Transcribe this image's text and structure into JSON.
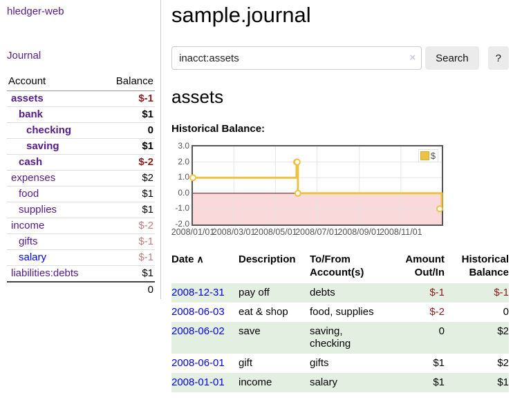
{
  "palette": {
    "visited_link": "#551A8B",
    "link": "#0000EE",
    "negative_strong": "#8b1a1a",
    "negative_dim": "#bd7e7e",
    "row_green": "#e3efe1",
    "series_gold": "#EDC240",
    "zero_line": "#800000",
    "negative_region": "#f9d9d9",
    "grid_line": "#e5e5e5",
    "plot_border": "#545454"
  },
  "sidebar": {
    "app_title": "hledger-web",
    "nav": [
      {
        "label": "Journal"
      }
    ],
    "accounts_table": {
      "headers": {
        "account": "Account",
        "balance": "Balance"
      },
      "rows": [
        {
          "name": "assets",
          "balance": "$-1",
          "indent": 1,
          "bold": true,
          "name_style": "visited",
          "balance_style": "neg-strong"
        },
        {
          "name": "bank",
          "balance": "$1",
          "indent": 2,
          "bold": true,
          "name_style": "visited",
          "balance_style": "pos"
        },
        {
          "name": "checking",
          "balance": "0",
          "indent": 3,
          "bold": true,
          "name_style": "visited",
          "balance_style": "pos"
        },
        {
          "name": "saving",
          "balance": "$1",
          "indent": 3,
          "bold": true,
          "name_style": "visited",
          "balance_style": "pos"
        },
        {
          "name": "cash",
          "balance": "$-2",
          "indent": 2,
          "bold": true,
          "name_style": "visited",
          "balance_style": "neg-strong"
        },
        {
          "name": "expenses",
          "balance": "$2",
          "indent": 1,
          "bold": false,
          "name_style": "visited",
          "balance_style": "pos"
        },
        {
          "name": "food",
          "balance": "$1",
          "indent": 2,
          "bold": false,
          "name_style": "visited",
          "balance_style": "pos"
        },
        {
          "name": "supplies",
          "balance": "$1",
          "indent": 2,
          "bold": false,
          "name_style": "visited",
          "balance_style": "pos"
        },
        {
          "name": "income",
          "balance": "$-2",
          "indent": 1,
          "bold": false,
          "name_style": "visited",
          "balance_style": "neg-dim"
        },
        {
          "name": "gifts",
          "balance": "$-1",
          "indent": 2,
          "bold": false,
          "name_style": "visited",
          "balance_style": "neg-dim"
        },
        {
          "name": "salary",
          "balance": "$-1",
          "indent": 2,
          "bold": false,
          "name_style": "link",
          "balance_style": "neg-dim"
        },
        {
          "name": "liabilities:debts",
          "balance": "$1",
          "indent": 1,
          "bold": false,
          "name_style": "visited",
          "balance_style": "pos"
        }
      ],
      "total": "0"
    }
  },
  "header": {
    "title": "sample.journal"
  },
  "search": {
    "value": "inacct:assets",
    "clear_icon": "×",
    "button_label": "Search",
    "help_label": "?"
  },
  "account_page": {
    "heading": "assets",
    "chart_label": "Historical Balance:"
  },
  "chart_data": {
    "type": "line",
    "title": "Historical Balance",
    "style": "steps",
    "series": [
      {
        "name": "$",
        "color": "#EDC240",
        "points": [
          [
            "2008-01-01",
            1
          ],
          [
            "2008-06-01",
            2
          ],
          [
            "2008-06-02",
            2
          ],
          [
            "2008-06-03",
            0
          ],
          [
            "2008-12-31",
            -1
          ]
        ]
      }
    ],
    "xlim": [
      "2008-01-01",
      "2008-12-31"
    ],
    "ylim": [
      -2,
      3
    ],
    "x_tick_dates": [
      "2008-01-01",
      "2008-03-01",
      "2008-05-01",
      "2008-07-01",
      "2008-09-01",
      "2008-11-01"
    ],
    "x_tick_labels": [
      "2008/01/01",
      "2008/03/01",
      "2008/05/01",
      "2008/07/01",
      "2008/09/01",
      "2008/11/01"
    ],
    "y_ticks": [
      "3.0",
      "2.0",
      "1.0",
      "0.0",
      "-1.0",
      "-2.0"
    ],
    "grid": true,
    "legend": {
      "label": "$",
      "position": "top-right"
    },
    "negative_region": true,
    "zero_line": true
  },
  "register": {
    "columns": [
      {
        "label": "Date",
        "sort": "asc",
        "align": "left"
      },
      {
        "label": "Description",
        "align": "left"
      },
      {
        "label": "To/From\nAccount(s)",
        "align": "left"
      },
      {
        "label": "Amount\nOut/In",
        "align": "right"
      },
      {
        "label": "Historical\nBalance",
        "align": "right"
      }
    ],
    "sort_icon": "∧",
    "rows": [
      {
        "date": "2008-12-31",
        "description": "pay off",
        "accounts": "debts",
        "amount": "$-1",
        "amount_style": "neg",
        "balance": "$-1",
        "balance_style": "neg"
      },
      {
        "date": "2008-06-03",
        "description": "eat & shop",
        "accounts": "food, supplies",
        "amount": "$-2",
        "amount_style": "neg",
        "balance": "0",
        "balance_style": "pos"
      },
      {
        "date": "2008-06-02",
        "description": "save",
        "accounts": "saving,\nchecking",
        "amount": "0",
        "amount_style": "pos",
        "balance": "$2",
        "balance_style": "pos"
      },
      {
        "date": "2008-06-01",
        "description": "gift",
        "accounts": "gifts",
        "amount": "$1",
        "amount_style": "pos",
        "balance": "$2",
        "balance_style": "pos"
      },
      {
        "date": "2008-01-01",
        "description": "income",
        "accounts": "salary",
        "amount": "$1",
        "amount_style": "pos",
        "balance": "$1",
        "balance_style": "pos"
      }
    ]
  }
}
